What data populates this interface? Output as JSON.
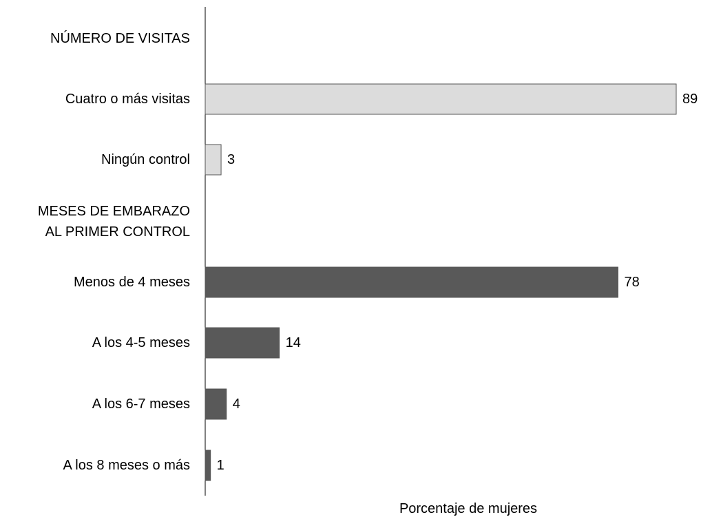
{
  "chart_data": {
    "type": "bar",
    "orientation": "horizontal",
    "title": "",
    "xlabel": "Porcentaje de mujeres",
    "ylabel": "",
    "xlim": [
      0,
      90
    ],
    "grid": false,
    "legend": "none",
    "rows": [
      {
        "kind": "header",
        "label": [
          "NÚMERO DE VISITAS"
        ]
      },
      {
        "kind": "bar",
        "label": [
          "Cuatro o más visitas"
        ],
        "value": 89,
        "color": "#dcdcdc"
      },
      {
        "kind": "bar",
        "label": [
          "Ningún control"
        ],
        "value": 3,
        "color": "#dcdcdc"
      },
      {
        "kind": "header",
        "label": [
          "MESES DE EMBARAZO",
          "AL PRIMER CONTROL"
        ]
      },
      {
        "kind": "bar",
        "label": [
          "Menos de 4 meses"
        ],
        "value": 78,
        "color": "#595959"
      },
      {
        "kind": "bar",
        "label": [
          "A los 4-5 meses"
        ],
        "value": 14,
        "color": "#595959"
      },
      {
        "kind": "bar",
        "label": [
          "A los 6-7 meses"
        ],
        "value": 4,
        "color": "#595959"
      },
      {
        "kind": "bar",
        "label": [
          "A los 8 meses o más"
        ],
        "value": 1,
        "color": "#595959"
      }
    ],
    "categories": [
      "Cuatro o más visitas",
      "Ningún control",
      "Menos de 4 meses",
      "A los 4-5 meses",
      "A los 6-7 meses",
      "A los 8 meses o más"
    ],
    "values": [
      89,
      3,
      78,
      14,
      4,
      1
    ]
  },
  "colors": {
    "visits_bar": "#dcdcdc",
    "months_bar": "#595959",
    "bar_stroke": "#555555",
    "axis_line": "#000000"
  }
}
